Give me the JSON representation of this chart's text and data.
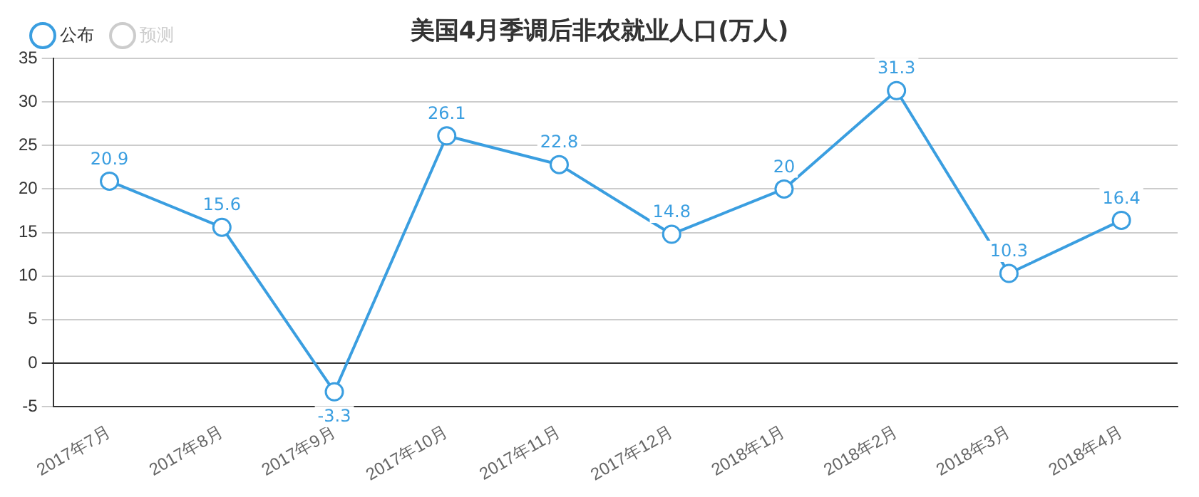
{
  "chart_data": {
    "type": "line",
    "title": "美国4月季调后非农就业人口(万人)",
    "categories": [
      "2017年7月",
      "2017年8月",
      "2017年9月",
      "2017年10月",
      "2017年11月",
      "2017年12月",
      "2018年1月",
      "2018年2月",
      "2018年3月",
      "2018年4月"
    ],
    "series": [
      {
        "name": "公布",
        "color": "#3a9ee0",
        "values": [
          20.9,
          15.6,
          -3.3,
          26.1,
          22.8,
          14.8,
          20,
          31.3,
          10.3,
          16.4
        ]
      },
      {
        "name": "预测",
        "color": "#cccccc",
        "values": [
          null,
          null,
          null,
          null,
          null,
          null,
          null,
          null,
          null,
          null
        ]
      }
    ],
    "ylim": [
      -5,
      35
    ],
    "yticks": [
      -5,
      0,
      5,
      10,
      15,
      20,
      25,
      30,
      35
    ],
    "grid": "y",
    "legend": "top left",
    "marker": "circle",
    "line_style": "solid",
    "data_labels": true
  }
}
